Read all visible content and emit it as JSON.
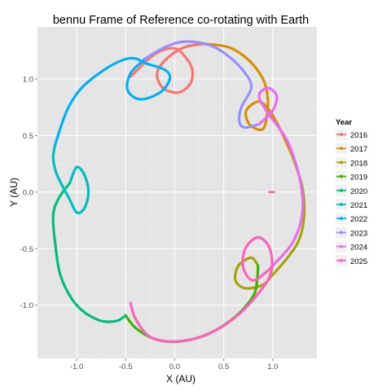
{
  "chart_data": {
    "type": "line",
    "title": "bennu Frame of Reference co-rotating with Earth",
    "xlabel": "X (AU)",
    "ylabel": "Y (AU)",
    "xlim": [
      -1.4,
      1.45
    ],
    "ylim": [
      -1.47,
      1.46
    ],
    "x_ticks": [
      -1.0,
      -0.5,
      0.0,
      0.5,
      1.0
    ],
    "x_tick_labels": [
      "-1.0",
      "-0.5",
      "0.0",
      "0.5",
      "1.0"
    ],
    "y_ticks": [
      -1.0,
      -0.5,
      0.0,
      0.5,
      1.0
    ],
    "y_tick_labels": [
      "-1.0",
      "-0.5",
      "0.0",
      "0.5",
      "1.0"
    ],
    "grid": true,
    "panel_background": "#e5e5e5",
    "legend": {
      "title": "Year",
      "position": "right"
    },
    "earth_marker": {
      "x": 0.99,
      "y": 0.0
    },
    "series": [
      {
        "name": "2016",
        "color": "#F8766D",
        "points": [
          [
            -0.45,
            1.02
          ],
          [
            -0.2,
            1.22
          ],
          [
            0.0,
            1.27
          ],
          [
            0.12,
            1.18
          ],
          [
            0.18,
            1.08
          ],
          [
            0.16,
            0.96
          ],
          [
            0.04,
            0.88
          ],
          [
            -0.12,
            0.92
          ],
          [
            -0.18,
            1.05
          ],
          [
            -0.08,
            1.18
          ],
          [
            0.1,
            1.28
          ],
          [
            0.3,
            1.31
          ]
        ]
      },
      {
        "name": "2017",
        "color": "#D89000",
        "points": [
          [
            0.3,
            1.31
          ],
          [
            0.55,
            1.28
          ],
          [
            0.75,
            1.17
          ],
          [
            0.9,
            1.0
          ],
          [
            0.95,
            0.82
          ],
          [
            0.93,
            0.62
          ],
          [
            0.88,
            0.55
          ],
          [
            0.76,
            0.6
          ],
          [
            0.73,
            0.72
          ],
          [
            0.85,
            0.8
          ],
          [
            0.95,
            0.74
          ],
          [
            1.05,
            0.6
          ],
          [
            1.2,
            0.32
          ]
        ]
      },
      {
        "name": "2018",
        "color": "#A3A500",
        "points": [
          [
            1.2,
            0.32
          ],
          [
            1.3,
            0.05
          ],
          [
            1.32,
            -0.2
          ],
          [
            1.27,
            -0.42
          ],
          [
            1.15,
            -0.58
          ],
          [
            1.0,
            -0.73
          ],
          [
            0.9,
            -0.82
          ],
          [
            0.72,
            -0.85
          ],
          [
            0.62,
            -0.78
          ],
          [
            0.65,
            -0.65
          ],
          [
            0.78,
            -0.58
          ],
          [
            0.85,
            -0.65
          ]
        ]
      },
      {
        "name": "2019",
        "color": "#39B600",
        "points": [
          [
            0.85,
            -0.65
          ],
          [
            0.84,
            -0.78
          ],
          [
            0.8,
            -0.92
          ],
          [
            0.62,
            -1.1
          ],
          [
            0.35,
            -1.25
          ],
          [
            0.05,
            -1.32
          ],
          [
            -0.2,
            -1.3
          ],
          [
            -0.4,
            -1.2
          ],
          [
            -0.5,
            -1.09
          ]
        ]
      },
      {
        "name": "2020",
        "color": "#00BF7D",
        "points": [
          [
            -0.5,
            -1.09
          ],
          [
            -0.6,
            -1.14
          ],
          [
            -0.78,
            -1.13
          ],
          [
            -1.0,
            -1.0
          ],
          [
            -1.16,
            -0.75
          ],
          [
            -1.22,
            -0.45
          ],
          [
            -1.24,
            -0.2
          ],
          [
            -1.18,
            -0.05
          ],
          [
            -1.07,
            0.08
          ]
        ]
      },
      {
        "name": "2021",
        "color": "#00BFC4",
        "points": [
          [
            -1.07,
            0.08
          ],
          [
            -1.0,
            0.22
          ],
          [
            -0.92,
            0.15
          ],
          [
            -0.88,
            0.0
          ],
          [
            -0.92,
            -0.14
          ],
          [
            -1.0,
            -0.18
          ],
          [
            -1.08,
            -0.05
          ],
          [
            -1.2,
            0.15
          ],
          [
            -1.24,
            0.3
          ],
          [
            -1.22,
            0.42
          ]
        ]
      },
      {
        "name": "2022",
        "color": "#00B0F6",
        "points": [
          [
            -1.22,
            0.42
          ],
          [
            -1.1,
            0.72
          ],
          [
            -0.95,
            0.92
          ],
          [
            -0.72,
            1.08
          ],
          [
            -0.52,
            1.17
          ],
          [
            -0.4,
            1.18
          ],
          [
            -0.3,
            1.14
          ],
          [
            -0.1,
            1.08
          ],
          [
            -0.05,
            1.0
          ],
          [
            -0.15,
            0.88
          ],
          [
            -0.35,
            0.82
          ],
          [
            -0.48,
            0.9
          ],
          [
            -0.45,
            1.05
          ],
          [
            -0.3,
            1.18
          ]
        ]
      },
      {
        "name": "2023",
        "color": "#9590FF",
        "points": [
          [
            -0.3,
            1.18
          ],
          [
            -0.1,
            1.28
          ],
          [
            0.1,
            1.33
          ],
          [
            0.35,
            1.3
          ],
          [
            0.55,
            1.2
          ],
          [
            0.72,
            1.05
          ],
          [
            0.78,
            0.92
          ],
          [
            0.68,
            0.75
          ],
          [
            0.66,
            0.62
          ],
          [
            0.72,
            0.57
          ],
          [
            0.86,
            0.6
          ]
        ]
      },
      {
        "name": "2024",
        "color": "#E76BF3",
        "points": [
          [
            0.86,
            0.6
          ],
          [
            1.0,
            0.72
          ],
          [
            1.04,
            0.85
          ],
          [
            0.95,
            0.92
          ],
          [
            0.86,
            0.85
          ],
          [
            0.95,
            0.7
          ],
          [
            1.15,
            0.45
          ],
          [
            1.28,
            0.1
          ],
          [
            1.3,
            -0.2
          ],
          [
            1.2,
            -0.45
          ],
          [
            1.0,
            -0.65
          ],
          [
            0.97,
            -0.68
          ]
        ]
      },
      {
        "name": "2025",
        "color": "#FF62BC",
        "points": [
          [
            0.97,
            -0.68
          ],
          [
            0.8,
            -0.78
          ],
          [
            0.7,
            -0.67
          ],
          [
            0.72,
            -0.5
          ],
          [
            0.85,
            -0.4
          ],
          [
            0.97,
            -0.5
          ],
          [
            0.98,
            -0.72
          ],
          [
            0.82,
            -0.93
          ],
          [
            0.6,
            -1.12
          ],
          [
            0.3,
            -1.27
          ],
          [
            0.0,
            -1.32
          ],
          [
            -0.25,
            -1.28
          ],
          [
            -0.4,
            -1.12
          ],
          [
            -0.45,
            -0.98
          ]
        ]
      }
    ]
  }
}
